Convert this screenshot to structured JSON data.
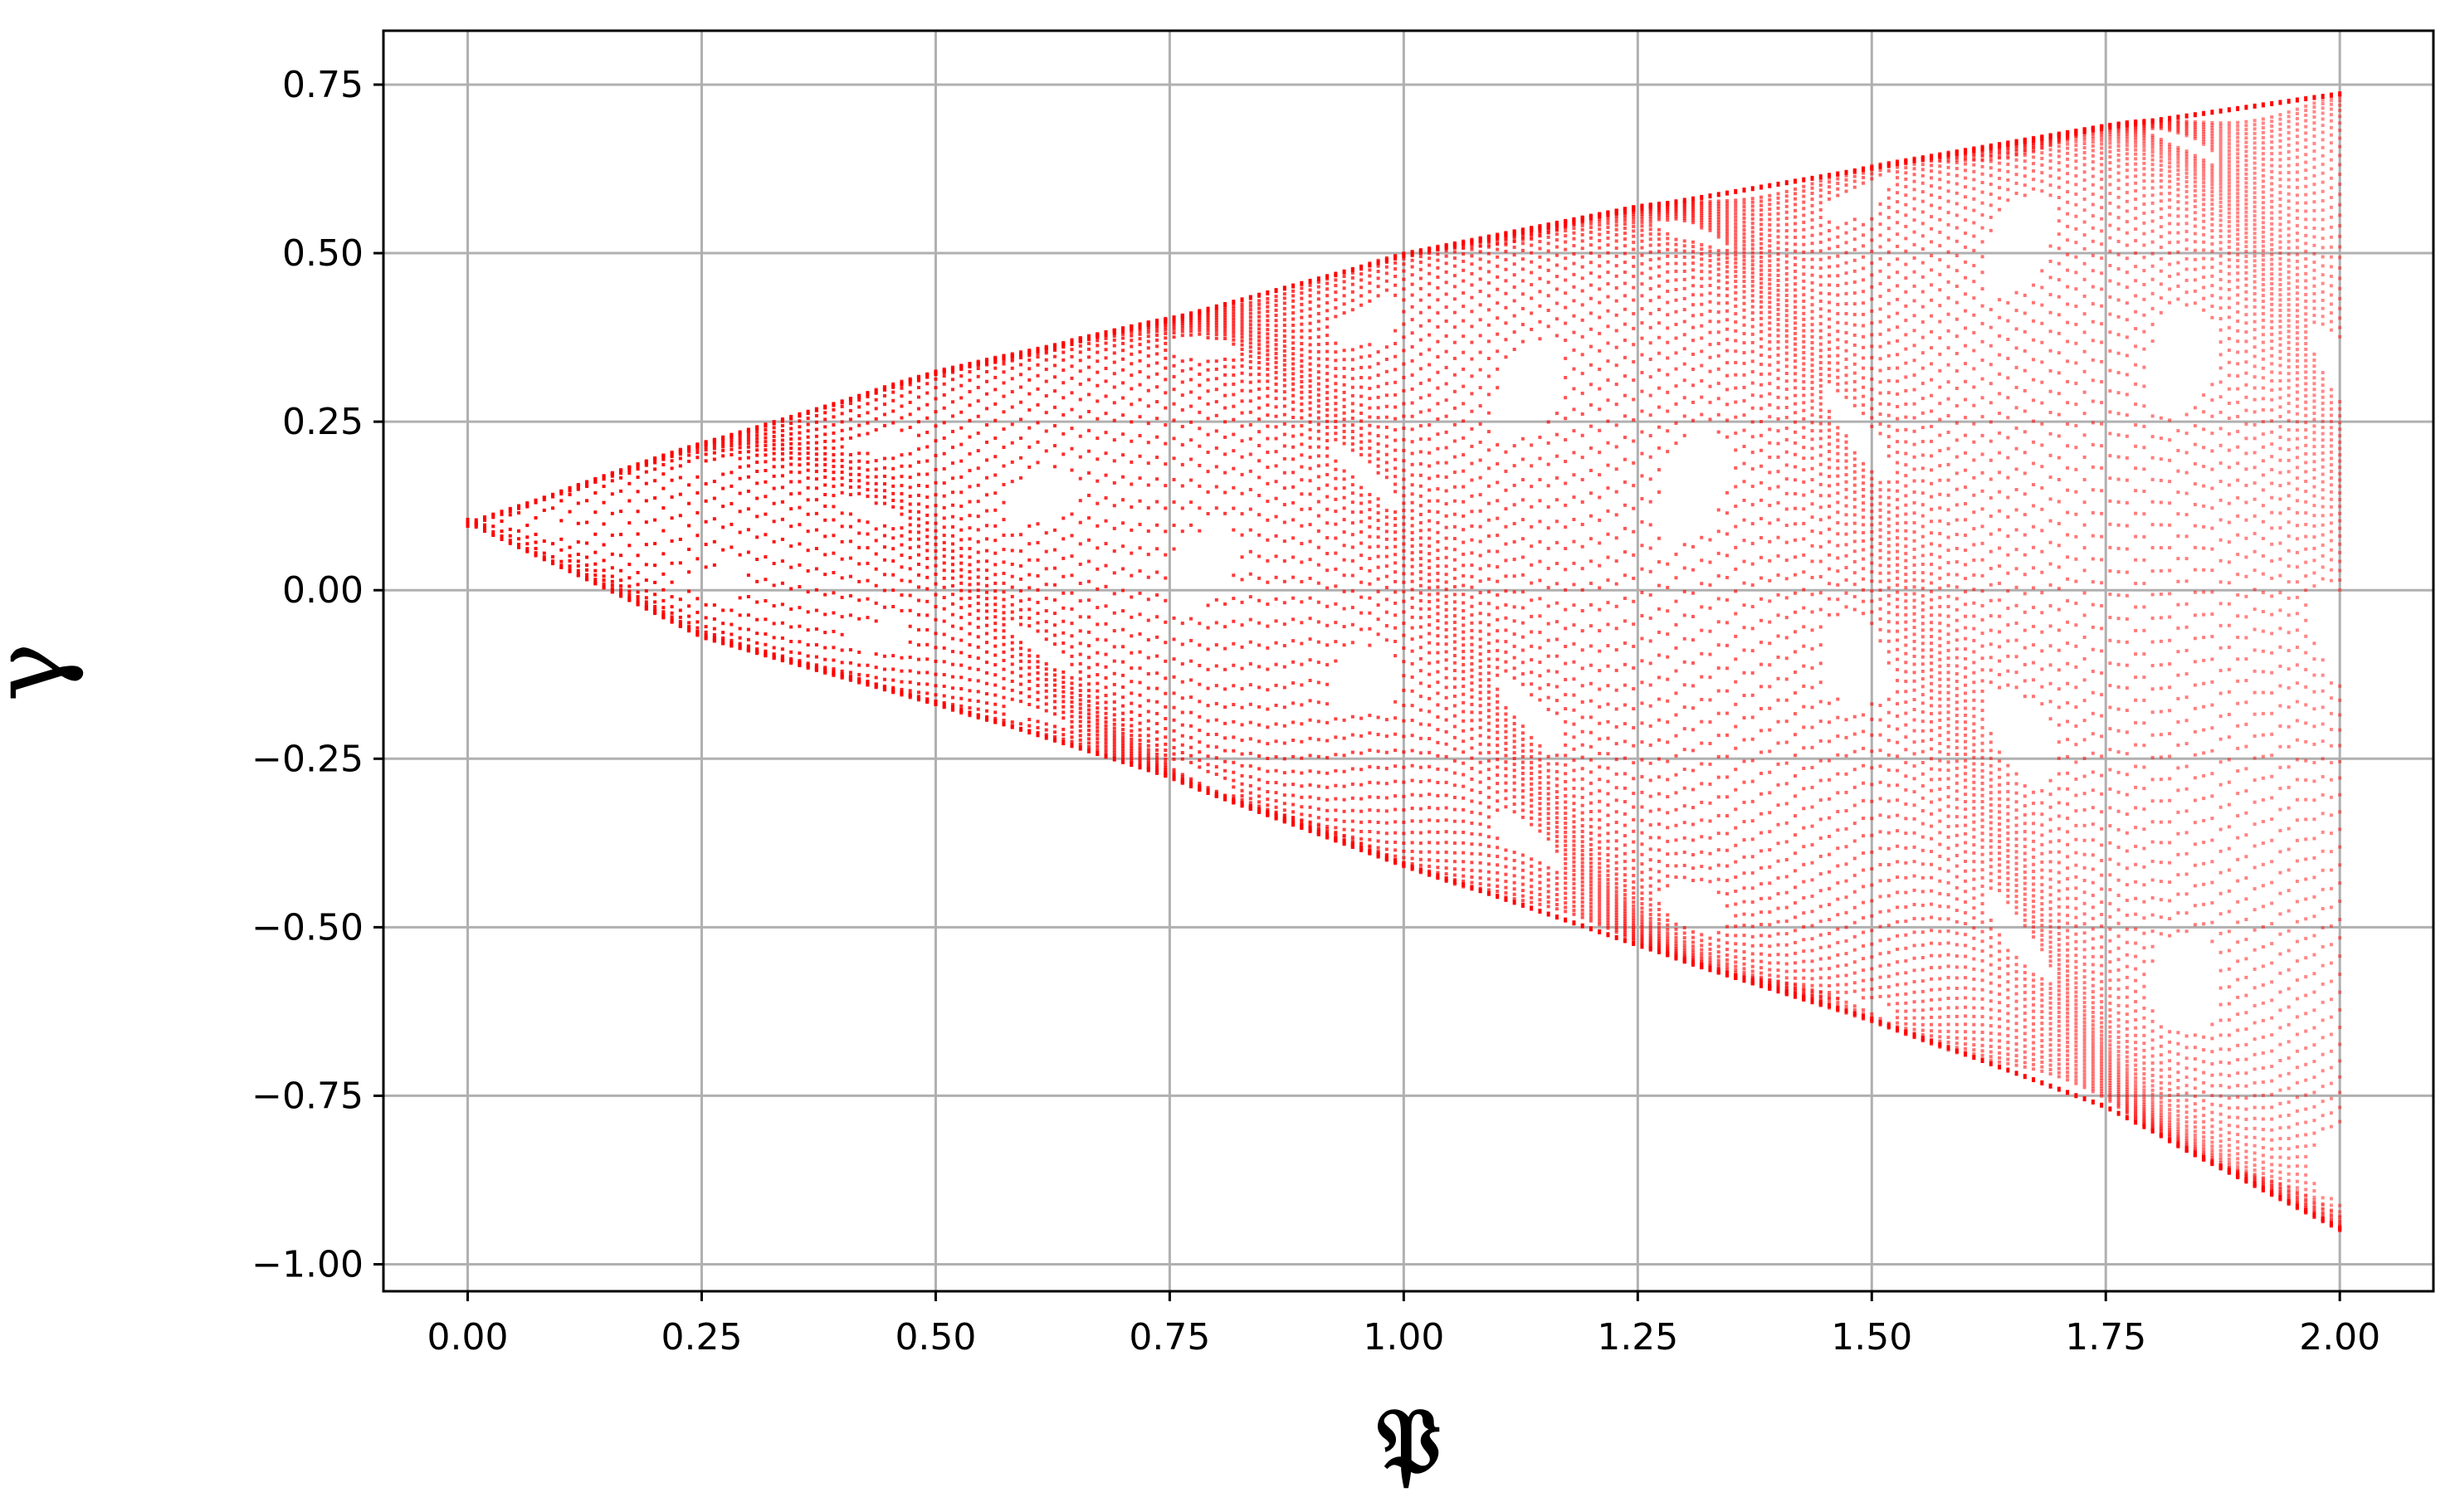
{
  "chart_data": {
    "type": "scatter",
    "title": "",
    "xlabel": "𝔓",
    "ylabel": "γ",
    "xlim": [
      -0.09,
      2.1
    ],
    "ylim": [
      -1.04,
      0.83
    ],
    "grid": true,
    "marker_color": "#ff0000",
    "x_ticks": [
      0.0,
      0.25,
      0.5,
      0.75,
      1.0,
      1.25,
      1.5,
      1.75,
      2.0
    ],
    "x_tick_labels": [
      "0.00",
      "0.25",
      "0.50",
      "0.75",
      "1.00",
      "1.25",
      "1.50",
      "1.75",
      "2.00"
    ],
    "y_ticks": [
      0.75,
      0.5,
      0.25,
      0.0,
      -0.25,
      -0.5,
      -0.75,
      -1.0
    ],
    "y_tick_labels": [
      "0.75",
      "0.50",
      "0.25",
      "0.00",
      "−0.25",
      "−0.50",
      "−0.75",
      "−1.00"
    ],
    "x_range": [
      0.0,
      2.0
    ],
    "upper_envelope": [
      [
        0.0,
        0.1
      ],
      [
        0.25,
        0.22
      ],
      [
        0.5,
        0.325
      ],
      [
        0.75,
        0.405
      ],
      [
        1.0,
        0.5
      ],
      [
        1.25,
        0.57
      ],
      [
        1.5,
        0.63
      ],
      [
        1.75,
        0.69
      ],
      [
        2.0,
        0.74
      ]
    ],
    "lower_envelope": [
      [
        0.0,
        0.1
      ],
      [
        0.25,
        -0.07
      ],
      [
        0.5,
        -0.17
      ],
      [
        0.75,
        -0.28
      ],
      [
        1.0,
        -0.41
      ],
      [
        1.25,
        -0.53
      ],
      [
        1.5,
        -0.64
      ],
      [
        1.75,
        -0.77
      ],
      [
        2.0,
        -0.95
      ]
    ]
  }
}
